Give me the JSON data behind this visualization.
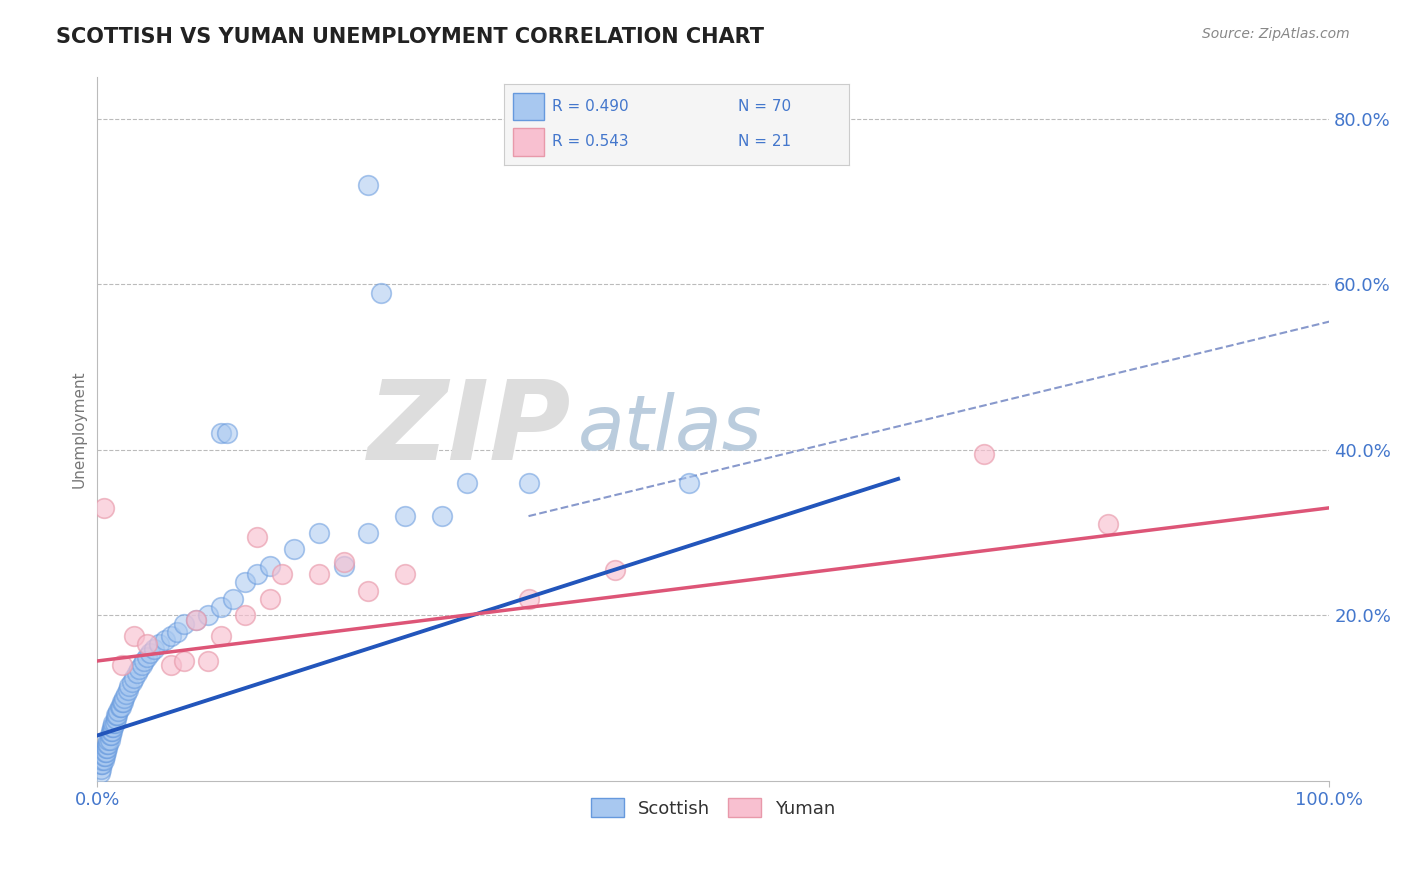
{
  "title": "SCOTTISH VS YUMAN UNEMPLOYMENT CORRELATION CHART",
  "source": "Source: ZipAtlas.com",
  "ylabel": "Unemployment",
  "xlim": [
    0,
    1
  ],
  "ylim": [
    0,
    0.85
  ],
  "yticks": [
    0.0,
    0.2,
    0.4,
    0.6,
    0.8
  ],
  "ytick_labels": [
    "",
    "20.0%",
    "40.0%",
    "60.0%",
    "80.0%"
  ],
  "legend_r1": "R = 0.490",
  "legend_n1": "N = 70",
  "legend_r2": "R = 0.543",
  "legend_n2": "N = 21",
  "blue_scatter_face": "#A8C8F0",
  "blue_scatter_edge": "#6699DD",
  "pink_scatter_face": "#F8C0D0",
  "pink_scatter_edge": "#E899AA",
  "blue_line_color": "#2255BB",
  "pink_line_color": "#DD5577",
  "dash_line_color": "#8899CC",
  "text_color": "#4477CC",
  "title_color": "#222222",
  "source_color": "#888888",
  "grid_color": "#BBBBBB",
  "legend_box_color": "#F5F5F5",
  "legend_box_edge": "#CCCCCC",
  "scottish_x": [
    0.002,
    0.003,
    0.003,
    0.004,
    0.004,
    0.005,
    0.005,
    0.006,
    0.006,
    0.007,
    0.007,
    0.008,
    0.008,
    0.009,
    0.009,
    0.01,
    0.01,
    0.011,
    0.011,
    0.012,
    0.012,
    0.013,
    0.013,
    0.014,
    0.015,
    0.015,
    0.016,
    0.017,
    0.018,
    0.019,
    0.02,
    0.021,
    0.022,
    0.023,
    0.025,
    0.026,
    0.028,
    0.03,
    0.032,
    0.034,
    0.036,
    0.038,
    0.04,
    0.043,
    0.046,
    0.05,
    0.055,
    0.06,
    0.065,
    0.07,
    0.08,
    0.09,
    0.1,
    0.11,
    0.12,
    0.13,
    0.14,
    0.16,
    0.18,
    0.2,
    0.22,
    0.25,
    0.28,
    0.3,
    0.35,
    0.48,
    0.22,
    0.23,
    0.1,
    0.105
  ],
  "scottish_y": [
    0.01,
    0.015,
    0.02,
    0.02,
    0.025,
    0.025,
    0.03,
    0.03,
    0.035,
    0.035,
    0.04,
    0.04,
    0.045,
    0.045,
    0.05,
    0.05,
    0.055,
    0.055,
    0.06,
    0.06,
    0.065,
    0.065,
    0.07,
    0.07,
    0.075,
    0.08,
    0.08,
    0.085,
    0.09,
    0.09,
    0.095,
    0.095,
    0.1,
    0.105,
    0.11,
    0.115,
    0.12,
    0.125,
    0.13,
    0.135,
    0.14,
    0.145,
    0.15,
    0.155,
    0.16,
    0.165,
    0.17,
    0.175,
    0.18,
    0.19,
    0.195,
    0.2,
    0.21,
    0.22,
    0.24,
    0.25,
    0.26,
    0.28,
    0.3,
    0.26,
    0.3,
    0.32,
    0.32,
    0.36,
    0.36,
    0.36,
    0.72,
    0.59,
    0.42,
    0.42
  ],
  "yuman_x": [
    0.005,
    0.02,
    0.03,
    0.04,
    0.06,
    0.07,
    0.08,
    0.09,
    0.1,
    0.12,
    0.13,
    0.14,
    0.15,
    0.18,
    0.2,
    0.22,
    0.25,
    0.35,
    0.42,
    0.72,
    0.82
  ],
  "yuman_y": [
    0.33,
    0.14,
    0.175,
    0.165,
    0.14,
    0.145,
    0.195,
    0.145,
    0.175,
    0.2,
    0.295,
    0.22,
    0.25,
    0.25,
    0.265,
    0.23,
    0.25,
    0.22,
    0.255,
    0.395,
    0.31
  ],
  "blue_line_x": [
    0.0,
    0.65
  ],
  "blue_line_y": [
    0.055,
    0.365
  ],
  "pink_line_x": [
    0.0,
    1.0
  ],
  "pink_line_y": [
    0.145,
    0.33
  ],
  "dash_line_x": [
    0.35,
    1.0
  ],
  "dash_line_y": [
    0.32,
    0.555
  ]
}
